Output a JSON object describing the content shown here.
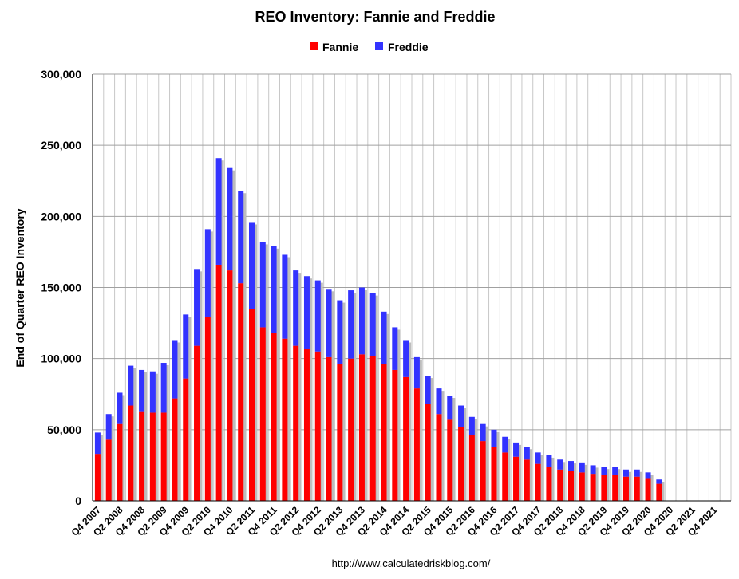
{
  "chart_data": {
    "type": "bar",
    "stacked": true,
    "title": "REO Inventory: Fannie and Freddie",
    "ylabel": "End of Quarter REO Inventory",
    "xlabel": "",
    "ylim": [
      0,
      300000
    ],
    "yticks": [
      "0",
      "50,000",
      "100,000",
      "150,000",
      "200,000",
      "250,000",
      "300,000"
    ],
    "grid": true,
    "legend_position": "top-center",
    "source": "http://www.calculatedriskblog.com/",
    "categories": [
      "Q4 2007",
      "Q1 2008",
      "Q2 2008",
      "Q3 2008",
      "Q4 2008",
      "Q1 2009",
      "Q2 2009",
      "Q3 2009",
      "Q4 2009",
      "Q1 2010",
      "Q2 2010",
      "Q3 2010",
      "Q4 2010",
      "Q1 2011",
      "Q2 2011",
      "Q3 2011",
      "Q4 2011",
      "Q1 2012",
      "Q2 2012",
      "Q3 2012",
      "Q4 2012",
      "Q1 2013",
      "Q2 2013",
      "Q3 2013",
      "Q4 2013",
      "Q1 2014",
      "Q2 2014",
      "Q3 2014",
      "Q4 2014",
      "Q1 2015",
      "Q2 2015",
      "Q3 2015",
      "Q4 2015",
      "Q1 2016",
      "Q2 2016",
      "Q3 2016",
      "Q4 2016",
      "Q1 2017",
      "Q2 2017",
      "Q3 2017",
      "Q4 2017",
      "Q1 2018",
      "Q2 2018",
      "Q3 2018",
      "Q4 2018",
      "Q1 2019",
      "Q2 2019",
      "Q3 2019",
      "Q4 2019",
      "Q1 2020",
      "Q2 2020",
      "Q3 2020",
      "Q4 2020",
      "Q1 2021",
      "Q2 2021",
      "Q3 2021",
      "Q4 2021",
      "Q1 2022"
    ],
    "tick_labels": [
      "Q4 2007",
      "Q2 2008",
      "Q4 2008",
      "Q2 2009",
      "Q4 2009",
      "Q2 2010",
      "Q4 2010",
      "Q2 2011",
      "Q4 2011",
      "Q2 2012",
      "Q4 2012",
      "Q2 2013",
      "Q4 2013",
      "Q2 2014",
      "Q4 2014",
      "Q2 2015",
      "Q4 2015",
      "Q2 2016",
      "Q4 2016",
      "Q2 2017",
      "Q4 2017",
      "Q2 2018",
      "Q4 2018",
      "Q2 2019",
      "Q4 2019",
      "Q2 2020",
      "Q4 2020",
      "Q2 2021",
      "Q4 2021"
    ],
    "series": [
      {
        "name": "Fannie",
        "color": "#ff0000",
        "values": [
          33000,
          43000,
          54000,
          67000,
          63000,
          62000,
          62000,
          72000,
          86000,
          109000,
          129000,
          166000,
          162000,
          153000,
          135000,
          122000,
          118000,
          114000,
          109000,
          107000,
          105000,
          101000,
          96000,
          100000,
          103000,
          102000,
          96000,
          92000,
          87000,
          79000,
          68000,
          61000,
          57000,
          52000,
          46000,
          42000,
          38000,
          34000,
          31000,
          29000,
          26000,
          24000,
          22000,
          21000,
          20000,
          19000,
          18000,
          18000,
          17000,
          17000,
          16000,
          12000,
          null,
          null,
          null,
          null,
          null,
          null
        ]
      },
      {
        "name": "Freddie",
        "color": "#3333ff",
        "values": [
          15000,
          18000,
          22000,
          28000,
          29000,
          29000,
          35000,
          41000,
          45000,
          54000,
          62000,
          75000,
          72000,
          65000,
          61000,
          60000,
          61000,
          59000,
          53000,
          51000,
          50000,
          48000,
          45000,
          48000,
          47000,
          44000,
          37000,
          30000,
          26000,
          22000,
          20000,
          18000,
          17000,
          15000,
          13000,
          12000,
          12000,
          11000,
          10000,
          9000,
          8000,
          8000,
          7000,
          7000,
          7000,
          6000,
          6000,
          6000,
          5000,
          5000,
          4000,
          3000,
          null,
          null,
          null,
          null,
          null,
          null
        ]
      }
    ]
  }
}
